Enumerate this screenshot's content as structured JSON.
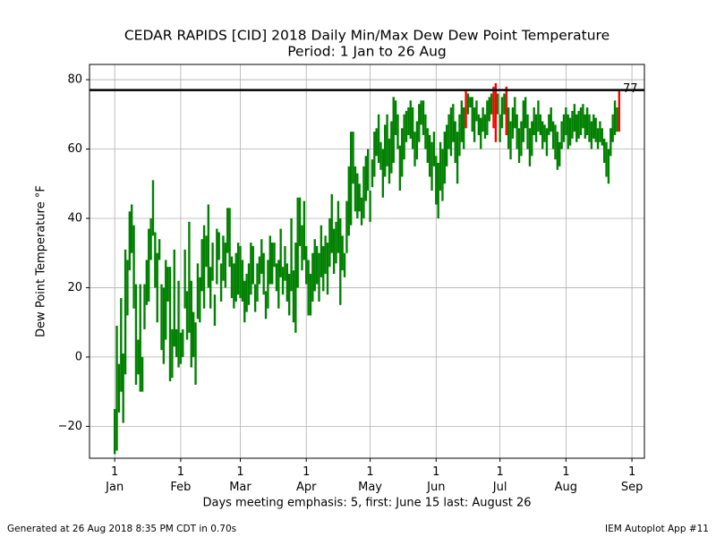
{
  "chart_data": {
    "type": "minmax_bar",
    "title": "CEDAR RAPIDS [CID] 2018 Daily Min/Max Dew Dew Point Temperature",
    "subtitle": "Period: 1 Jan to 26 Aug",
    "ylabel": "Dew Point Temperature °F",
    "xlabel": "Days meeting emphasis: 5, first: June 15 last: August 26",
    "footer_left": "Generated at 26 Aug 2018 8:35 PM CDT in 0.70s",
    "footer_right": "IEM Autoplot App #11",
    "color": "green",
    "emphasis_color": "red",
    "threshold": 77,
    "threshold_color": "black",
    "grid": true,
    "xlim": [
      -10.85,
      249.85
    ],
    "xticks": [
      {
        "value": 1,
        "label": "1\nJan"
      },
      {
        "value": 32,
        "label": "1\nFeb"
      },
      {
        "value": 60,
        "label": "1\nMar"
      },
      {
        "value": 91,
        "label": "1\nApr"
      },
      {
        "value": 121,
        "label": "1\nMay"
      },
      {
        "value": 152,
        "label": "1\nJun"
      },
      {
        "value": 182,
        "label": "1\nJul"
      },
      {
        "value": 213,
        "label": "1\nAug"
      },
      {
        "value": 244,
        "label": "1\nSep"
      }
    ],
    "ylim": [
      -29.2,
      84.4
    ],
    "yticks": [
      {
        "value": -20,
        "label": "−20"
      },
      0,
      20,
      40,
      60,
      80
    ],
    "x": [
      1,
      2,
      3,
      4,
      5,
      6,
      7,
      8,
      9,
      10,
      11,
      12,
      13,
      14,
      15,
      16,
      17,
      18,
      19,
      20,
      21,
      22,
      23,
      24,
      25,
      26,
      27,
      28,
      29,
      30,
      31,
      32,
      33,
      34,
      35,
      36,
      37,
      38,
      39,
      40,
      41,
      42,
      43,
      44,
      45,
      46,
      47,
      48,
      49,
      50,
      51,
      52,
      53,
      54,
      55,
      56,
      57,
      58,
      59,
      60,
      61,
      62,
      63,
      64,
      65,
      66,
      67,
      68,
      69,
      70,
      71,
      72,
      73,
      74,
      75,
      76,
      77,
      78,
      79,
      80,
      81,
      82,
      83,
      84,
      85,
      86,
      87,
      88,
      89,
      90,
      91,
      92,
      93,
      94,
      95,
      96,
      97,
      98,
      99,
      100,
      101,
      102,
      103,
      104,
      105,
      106,
      107,
      108,
      109,
      110,
      111,
      112,
      113,
      114,
      115,
      116,
      117,
      118,
      119,
      120,
      121,
      122,
      123,
      124,
      125,
      126,
      127,
      128,
      129,
      130,
      131,
      132,
      133,
      134,
      135,
      136,
      137,
      138,
      139,
      140,
      141,
      142,
      143,
      144,
      145,
      146,
      147,
      148,
      149,
      150,
      151,
      152,
      153,
      154,
      155,
      156,
      157,
      158,
      159,
      160,
      161,
      162,
      163,
      164,
      165,
      166,
      167,
      168,
      169,
      170,
      171,
      172,
      173,
      174,
      175,
      176,
      177,
      178,
      179,
      180,
      181,
      182,
      183,
      184,
      185,
      186,
      187,
      188,
      189,
      190,
      191,
      192,
      193,
      194,
      195,
      196,
      197,
      198,
      199,
      200,
      201,
      202,
      203,
      204,
      205,
      206,
      207,
      208,
      209,
      210,
      211,
      212,
      213,
      214,
      215,
      216,
      217,
      218,
      219,
      220,
      221,
      222,
      223,
      224,
      225,
      226,
      227,
      228,
      229,
      230,
      231,
      232,
      233,
      234,
      235,
      236,
      237,
      238
    ],
    "low": [
      -28,
      -27,
      -16,
      -10,
      -19,
      -5,
      12,
      25,
      30,
      14,
      -8,
      -5,
      -10,
      -10,
      8,
      15,
      16,
      28,
      35,
      20,
      10,
      28,
      2,
      -2,
      5,
      16,
      -7,
      -6,
      3,
      0,
      -3,
      -2,
      0,
      14,
      5,
      7,
      -3,
      0,
      -8,
      11,
      10,
      19,
      14,
      26,
      20,
      14,
      22,
      9,
      21,
      28,
      16,
      22,
      20,
      30,
      26,
      17,
      14,
      16,
      18,
      17,
      16,
      10,
      13,
      15,
      18,
      21,
      13,
      16,
      21,
      24,
      18,
      11,
      14,
      21,
      21,
      26,
      19,
      14,
      23,
      18,
      22,
      16,
      12,
      19,
      10,
      7,
      20,
      32,
      25,
      28,
      21,
      12,
      12,
      16,
      19,
      21,
      16,
      23,
      19,
      24,
      18,
      26,
      30,
      24,
      27,
      30,
      15,
      25,
      23,
      30,
      35,
      38,
      50,
      42,
      40,
      42,
      38,
      40,
      45,
      48,
      39,
      49,
      52,
      58,
      56,
      54,
      46,
      52,
      55,
      50,
      53,
      56,
      64,
      60,
      48,
      52,
      57,
      62,
      64,
      63,
      60,
      55,
      57,
      62,
      67,
      64,
      60,
      56,
      52,
      48,
      55,
      44,
      40,
      48,
      45,
      50,
      55,
      60,
      58,
      62,
      56,
      50,
      58,
      62,
      60,
      66,
      70,
      72,
      65,
      62,
      68,
      64,
      60,
      65,
      63,
      64,
      68,
      70,
      66,
      62,
      70,
      62,
      66,
      70,
      64,
      60,
      57,
      63,
      66,
      60,
      56,
      58,
      62,
      66,
      60,
      55,
      58,
      64,
      62,
      65,
      64,
      60,
      62,
      58,
      64,
      65,
      60,
      57,
      54,
      55,
      60,
      62,
      64,
      60,
      61,
      63,
      65,
      62,
      63,
      64,
      66,
      63,
      64,
      62,
      60,
      63,
      62,
      60,
      62,
      61,
      56,
      52,
      50,
      58,
      62,
      64,
      65,
      65
    ],
    "high": [
      -15,
      9,
      -2,
      17,
      1,
      31,
      28,
      42,
      44,
      38,
      21,
      5,
      21,
      0,
      21,
      28,
      37,
      40,
      51,
      36,
      30,
      34,
      21,
      20,
      28,
      26,
      26,
      8,
      31,
      8,
      22,
      7,
      8,
      31,
      19,
      39,
      22,
      13,
      10,
      27,
      23,
      34,
      38,
      35,
      44,
      26,
      33,
      18,
      37,
      36,
      27,
      35,
      33,
      43,
      43,
      29,
      27,
      30,
      33,
      32,
      28,
      22,
      24,
      27,
      33,
      32,
      21,
      27,
      29,
      34,
      30,
      19,
      28,
      35,
      33,
      33,
      27,
      28,
      37,
      26,
      32,
      27,
      24,
      40,
      25,
      33,
      46,
      46,
      38,
      45,
      32,
      28,
      24,
      30,
      34,
      32,
      30,
      38,
      32,
      35,
      33,
      40,
      47,
      37,
      39,
      45,
      40,
      35,
      30,
      45,
      55,
      65,
      65,
      55,
      53,
      50,
      46,
      55,
      58,
      60,
      48,
      57,
      65,
      66,
      70,
      62,
      60,
      67,
      70,
      63,
      68,
      75,
      74,
      70,
      61,
      66,
      70,
      71,
      72,
      74,
      72,
      65,
      68,
      73,
      74,
      74,
      70,
      66,
      64,
      62,
      65,
      58,
      56,
      62,
      60,
      65,
      67,
      70,
      72,
      73,
      68,
      65,
      70,
      74,
      72,
      77,
      76,
      75,
      75,
      72,
      74,
      70,
      69,
      72,
      70,
      74,
      75,
      76,
      78,
      79,
      76,
      70,
      75,
      76,
      78,
      72,
      68,
      72,
      75,
      70,
      66,
      68,
      74,
      75,
      70,
      66,
      68,
      72,
      70,
      74,
      70,
      68,
      67,
      66,
      70,
      72,
      68,
      67,
      65,
      62,
      68,
      70,
      72,
      70,
      69,
      71,
      73,
      70,
      71,
      72,
      73,
      70,
      72,
      70,
      68,
      70,
      69,
      66,
      68,
      66,
      63,
      62,
      60,
      66,
      70,
      74,
      72,
      77
    ]
  }
}
